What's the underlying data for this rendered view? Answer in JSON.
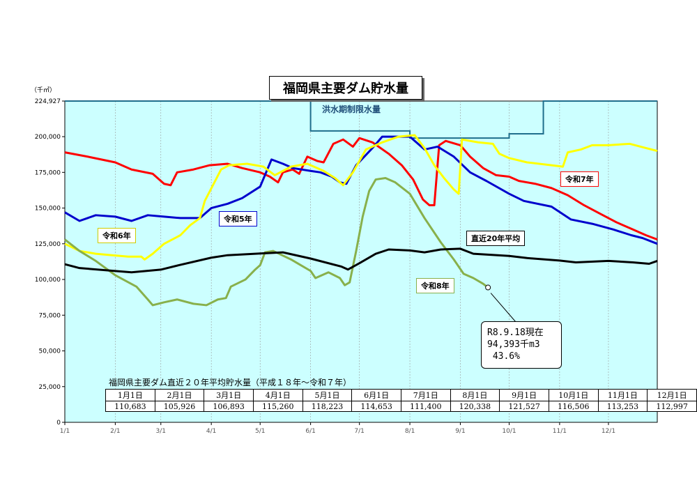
{
  "title": "福岡県主要ダム貯水量",
  "unit": "（千㎥）",
  "flood_limit_label": "洪水期制限水量",
  "annotation": {
    "line1": "R8.9.18現在",
    "line2": "94,393千m3",
    "line3": " 43.6%"
  },
  "average_table": {
    "title": "福岡県主要ダム直近２０年平均貯水量（平成１８年～令和７年）",
    "headers": [
      "1月1日",
      "2月1日",
      "3月1日",
      "4月1日",
      "5月1日",
      "6月1日",
      "7月1日",
      "8月1日",
      "9月1日",
      "10月1日",
      "11月1日",
      "12月1日"
    ],
    "values": [
      "110,683",
      "105,926",
      "106,893",
      "115,260",
      "118,223",
      "114,653",
      "111,400",
      "120,338",
      "121,527",
      "116,506",
      "113,253",
      "112,997"
    ]
  },
  "chart_data": {
    "type": "line",
    "title": "福岡県主要ダム貯水量",
    "x_unit": "day_of_year",
    "xlim": [
      1,
      365
    ],
    "ylim": [
      0,
      224927
    ],
    "y_ticks": [
      0,
      25000,
      50000,
      75000,
      100000,
      125000,
      150000,
      175000,
      200000,
      224927
    ],
    "y_tick_labels": [
      "0",
      "25,000",
      "50,000",
      "75,000",
      "100,000",
      "125,000",
      "150,000",
      "175,000",
      "200,000",
      "224,927"
    ],
    "x_ticks": [
      1,
      32,
      60,
      91,
      121,
      152,
      182,
      213,
      244,
      274,
      305,
      335
    ],
    "x_tick_labels": [
      "1/1",
      "2/1",
      "3/1",
      "4/1",
      "5/1",
      "6/1",
      "7/1",
      "8/1",
      "9/1",
      "10/1",
      "11/1",
      "12/1"
    ],
    "background": "#ccffff",
    "grid": "vertical",
    "flood_limit": {
      "color": "#1f6e8c",
      "points": [
        [
          1,
          224927
        ],
        [
          152,
          224927
        ],
        [
          152,
          204000
        ],
        [
          213,
          204000
        ],
        [
          213,
          199000
        ],
        [
          274,
          199000
        ],
        [
          274,
          202000
        ],
        [
          295,
          202000
        ],
        [
          295,
          224927
        ],
        [
          365,
          224927
        ]
      ]
    },
    "series": [
      {
        "name": "令和7年",
        "color": "#ff0000",
        "points": [
          [
            1,
            189000
          ],
          [
            15,
            186000
          ],
          [
            32,
            182000
          ],
          [
            42,
            177000
          ],
          [
            55,
            174000
          ],
          [
            62,
            167000
          ],
          [
            66,
            166000
          ],
          [
            70,
            175000
          ],
          [
            80,
            177000
          ],
          [
            90,
            180000
          ],
          [
            101,
            181000
          ],
          [
            110,
            178000
          ],
          [
            121,
            175000
          ],
          [
            127,
            172000
          ],
          [
            132,
            168000
          ],
          [
            135,
            175000
          ],
          [
            141,
            177000
          ],
          [
            145,
            174000
          ],
          [
            150,
            186000
          ],
          [
            156,
            183000
          ],
          [
            160,
            182000
          ],
          [
            166,
            195000
          ],
          [
            172,
            198000
          ],
          [
            178,
            193000
          ],
          [
            182,
            199000
          ],
          [
            190,
            196000
          ],
          [
            200,
            188000
          ],
          [
            208,
            180000
          ],
          [
            215,
            170000
          ],
          [
            221,
            156000
          ],
          [
            225,
            152000
          ],
          [
            228,
            152000
          ],
          [
            231,
            194000
          ],
          [
            235,
            197000
          ],
          [
            244,
            194000
          ],
          [
            250,
            186000
          ],
          [
            258,
            178000
          ],
          [
            266,
            173000
          ],
          [
            274,
            172000
          ],
          [
            280,
            169000
          ],
          [
            290,
            167000
          ],
          [
            300,
            164000
          ],
          [
            310,
            159000
          ],
          [
            320,
            152000
          ],
          [
            330,
            146000
          ],
          [
            340,
            140000
          ],
          [
            350,
            135000
          ],
          [
            358,
            131000
          ],
          [
            365,
            128000
          ]
        ]
      },
      {
        "name": "令和5年",
        "color": "#0000cc",
        "points": [
          [
            1,
            147000
          ],
          [
            10,
            141000
          ],
          [
            20,
            145000
          ],
          [
            32,
            144000
          ],
          [
            42,
            141000
          ],
          [
            52,
            145000
          ],
          [
            62,
            144000
          ],
          [
            72,
            143000
          ],
          [
            84,
            143000
          ],
          [
            91,
            150000
          ],
          [
            101,
            153000
          ],
          [
            110,
            157000
          ],
          [
            121,
            165000
          ],
          [
            128,
            184000
          ],
          [
            135,
            181000
          ],
          [
            141,
            178000
          ],
          [
            152,
            176000
          ],
          [
            158,
            175000
          ],
          [
            165,
            172000
          ],
          [
            170,
            168000
          ],
          [
            174,
            167000
          ],
          [
            180,
            180000
          ],
          [
            190,
            192000
          ],
          [
            196,
            200000
          ],
          [
            204,
            200000
          ],
          [
            213,
            200000
          ],
          [
            222,
            191000
          ],
          [
            230,
            193000
          ],
          [
            240,
            186000
          ],
          [
            250,
            175000
          ],
          [
            260,
            169000
          ],
          [
            274,
            160000
          ],
          [
            283,
            155000
          ],
          [
            300,
            151000
          ],
          [
            312,
            142000
          ],
          [
            325,
            139000
          ],
          [
            338,
            135000
          ],
          [
            349,
            131000
          ],
          [
            356,
            129000
          ],
          [
            365,
            125000
          ]
        ]
      },
      {
        "name": "令和6年",
        "color": "#ffff00",
        "points": [
          [
            1,
            125000
          ],
          [
            10,
            120000
          ],
          [
            20,
            118000
          ],
          [
            30,
            117000
          ],
          [
            40,
            116000
          ],
          [
            48,
            116000
          ],
          [
            50,
            114000
          ],
          [
            55,
            118000
          ],
          [
            62,
            125000
          ],
          [
            72,
            131000
          ],
          [
            78,
            138000
          ],
          [
            84,
            143000
          ],
          [
            87,
            155000
          ],
          [
            92,
            166000
          ],
          [
            97,
            177000
          ],
          [
            102,
            180000
          ],
          [
            113,
            181000
          ],
          [
            123,
            179000
          ],
          [
            130,
            173000
          ],
          [
            140,
            179000
          ],
          [
            150,
            181000
          ],
          [
            160,
            176000
          ],
          [
            167,
            171000
          ],
          [
            172,
            166000
          ],
          [
            178,
            175000
          ],
          [
            186,
            191000
          ],
          [
            196,
            196000
          ],
          [
            206,
            200000
          ],
          [
            216,
            201000
          ],
          [
            222,
            192000
          ],
          [
            228,
            180000
          ],
          [
            234,
            171000
          ],
          [
            240,
            163000
          ],
          [
            243,
            160000
          ],
          [
            245,
            198000
          ],
          [
            255,
            196000
          ],
          [
            264,
            195000
          ],
          [
            268,
            188000
          ],
          [
            274,
            185000
          ],
          [
            285,
            182000
          ],
          [
            300,
            180000
          ],
          [
            307,
            179000
          ],
          [
            310,
            189000
          ],
          [
            318,
            191000
          ],
          [
            325,
            194000
          ],
          [
            335,
            194000
          ],
          [
            348,
            195000
          ],
          [
            358,
            192000
          ],
          [
            365,
            190000
          ]
        ]
      },
      {
        "name": "令和8年",
        "color": "#88b04b",
        "points": [
          [
            1,
            128000
          ],
          [
            10,
            120000
          ],
          [
            20,
            113000
          ],
          [
            32,
            103000
          ],
          [
            45,
            95000
          ],
          [
            52,
            86000
          ],
          [
            55,
            82000
          ],
          [
            62,
            84000
          ],
          [
            70,
            86000
          ],
          [
            80,
            83000
          ],
          [
            88,
            82000
          ],
          [
            95,
            86000
          ],
          [
            100,
            87000
          ],
          [
            103,
            95000
          ],
          [
            112,
            100000
          ],
          [
            118,
            107000
          ],
          [
            121,
            110000
          ],
          [
            124,
            119000
          ],
          [
            129,
            120000
          ],
          [
            140,
            114000
          ],
          [
            146,
            110000
          ],
          [
            152,
            106000
          ],
          [
            155,
            101000
          ],
          [
            163,
            105000
          ],
          [
            170,
            101000
          ],
          [
            173,
            96000
          ],
          [
            176,
            98000
          ],
          [
            180,
            120000
          ],
          [
            184,
            144000
          ],
          [
            188,
            162000
          ],
          [
            192,
            170000
          ],
          [
            198,
            171000
          ],
          [
            204,
            168000
          ],
          [
            213,
            160000
          ],
          [
            222,
            143000
          ],
          [
            232,
            126000
          ],
          [
            240,
            114000
          ],
          [
            246,
            104000
          ],
          [
            252,
            101000
          ],
          [
            258,
            97000
          ],
          [
            261,
            94393
          ]
        ]
      },
      {
        "name": "直近20年平均",
        "color": "#000000",
        "points": [
          [
            1,
            110683
          ],
          [
            10,
            108000
          ],
          [
            32,
            105926
          ],
          [
            42,
            105000
          ],
          [
            60,
            106893
          ],
          [
            71,
            110000
          ],
          [
            91,
            115260
          ],
          [
            101,
            117000
          ],
          [
            121,
            118223
          ],
          [
            135,
            119000
          ],
          [
            152,
            114653
          ],
          [
            171,
            109000
          ],
          [
            175,
            107000
          ],
          [
            182,
            111400
          ],
          [
            192,
            118000
          ],
          [
            200,
            121000
          ],
          [
            213,
            120338
          ],
          [
            222,
            119000
          ],
          [
            232,
            121000
          ],
          [
            244,
            121527
          ],
          [
            252,
            118000
          ],
          [
            274,
            116506
          ],
          [
            285,
            115000
          ],
          [
            305,
            113253
          ],
          [
            315,
            112000
          ],
          [
            335,
            112997
          ],
          [
            350,
            112000
          ],
          [
            360,
            111000
          ],
          [
            365,
            113000
          ]
        ]
      }
    ],
    "point_marker": {
      "x": 261,
      "y": 94393
    }
  },
  "labels": {
    "r7": "令和7年",
    "r5": "令和5年",
    "r6": "令和6年",
    "r8": "令和8年",
    "avg": "直近20年平均"
  }
}
